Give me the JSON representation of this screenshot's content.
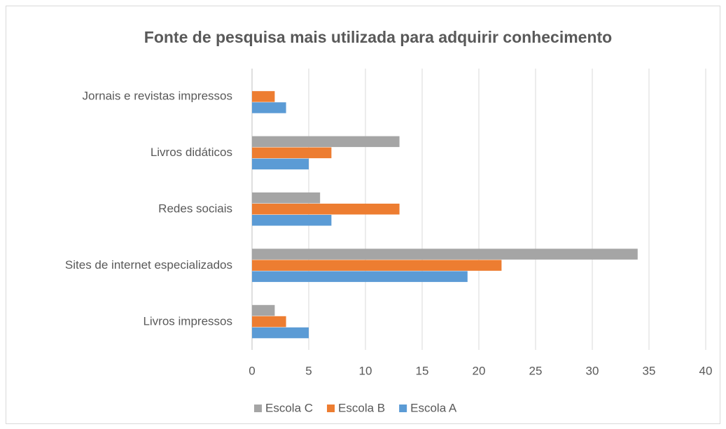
{
  "chart_data": {
    "type": "bar",
    "orientation": "horizontal",
    "title": "Fonte de pesquisa mais utilizada para adquirir conhecimento",
    "categories": [
      "Livros impressos",
      "Sites de internet especializados",
      "Redes sociais",
      "Livros didáticos",
      "Jornais e revistas impressos"
    ],
    "series": [
      {
        "name": "Escola A",
        "color": "#5b9bd5",
        "values": [
          5,
          19,
          7,
          5,
          3
        ]
      },
      {
        "name": "Escola B",
        "color": "#ed7d31",
        "values": [
          3,
          22,
          13,
          7,
          2
        ]
      },
      {
        "name": "Escola C",
        "color": "#a5a5a5",
        "values": [
          2,
          34,
          6,
          13,
          0
        ]
      }
    ],
    "xlim": [
      0,
      40
    ],
    "xticks": [
      0,
      5,
      10,
      15,
      20,
      25,
      30,
      35,
      40
    ],
    "grid": true,
    "legend": "bottom"
  }
}
